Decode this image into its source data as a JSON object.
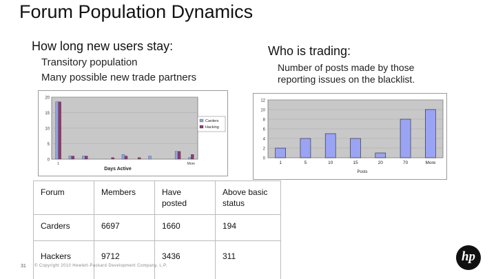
{
  "slide": {
    "title": "Forum Population Dynamics",
    "left_heading": "How long new users stay:",
    "left_points": [
      "Transitory population",
      "Many possible new trade partners"
    ],
    "right_heading": "Who is trading:",
    "right_text": [
      "Number of posts made by those",
      "reporting issues on the blacklist."
    ],
    "page_number": "31",
    "footer": "© Copyright 2010 Hewlett-Packard Development Company, L.P.",
    "logo_text": "hp"
  },
  "colors": {
    "carders": "#8fa2e0",
    "hacking": "#8b3b6b",
    "right_bars": "#9aa4f4",
    "accent": "#000000"
  },
  "table": {
    "headers": [
      "Forum",
      "Members",
      "Have posted",
      "Above basic status"
    ],
    "rows": [
      [
        "Carders",
        "6697",
        "1660",
        "194"
      ],
      [
        "Hackers",
        "9712",
        "3436",
        "311"
      ]
    ]
  },
  "chart_data": [
    {
      "type": "bar",
      "title": "",
      "xlabel": "Days Active",
      "ylabel": "",
      "ylim": [
        0,
        20
      ],
      "yticks": [
        "0",
        "5",
        "10",
        "15",
        "20"
      ],
      "categories": [
        "1",
        "",
        "",
        "",
        "",
        "",
        "",
        "",
        "",
        "",
        "More"
      ],
      "series": [
        {
          "name": "Carders",
          "values": [
            18.5,
            1,
            1,
            0,
            0,
            1.5,
            0,
            1,
            0,
            2.5,
            0.5
          ]
        },
        {
          "name": "Hacking",
          "values": [
            18.5,
            1,
            1,
            0,
            0.5,
            1,
            0.5,
            0,
            0,
            2.5,
            1.5
          ]
        }
      ],
      "legend": "right"
    },
    {
      "type": "bar",
      "title": "",
      "xlabel": "Posts",
      "ylabel": "",
      "ylim": [
        0,
        12
      ],
      "yticks": [
        "0",
        "2",
        "4",
        "6",
        "8",
        "10",
        "12"
      ],
      "categories": [
        "1",
        "5",
        "10",
        "15",
        "20",
        "70",
        "More"
      ],
      "values": [
        2,
        4,
        5,
        4,
        1,
        8,
        10
      ]
    }
  ]
}
